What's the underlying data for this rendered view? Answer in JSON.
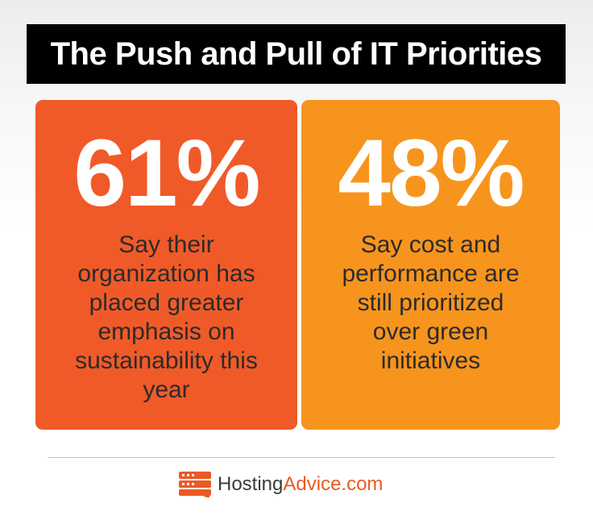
{
  "header": {
    "title": "The Push and Pull of IT Priorities"
  },
  "cards": [
    {
      "stat": "61%",
      "lines": [
        "Say their",
        "organization has",
        "placed greater",
        "emphasis on",
        "sustainability this",
        "year"
      ]
    },
    {
      "stat": "48%",
      "lines": [
        "Say cost and",
        "performance are",
        "still prioritized",
        "over green",
        "initiatives"
      ]
    }
  ],
  "footer": {
    "logo_icon": "server-stack-icon",
    "brand_part1": "Hosting",
    "brand_part2": "Advice.com"
  },
  "colors": {
    "card_left": "#f05a28",
    "card_right": "#f7941d",
    "brand_accent": "#ea5a24",
    "title_bg": "#000000"
  }
}
